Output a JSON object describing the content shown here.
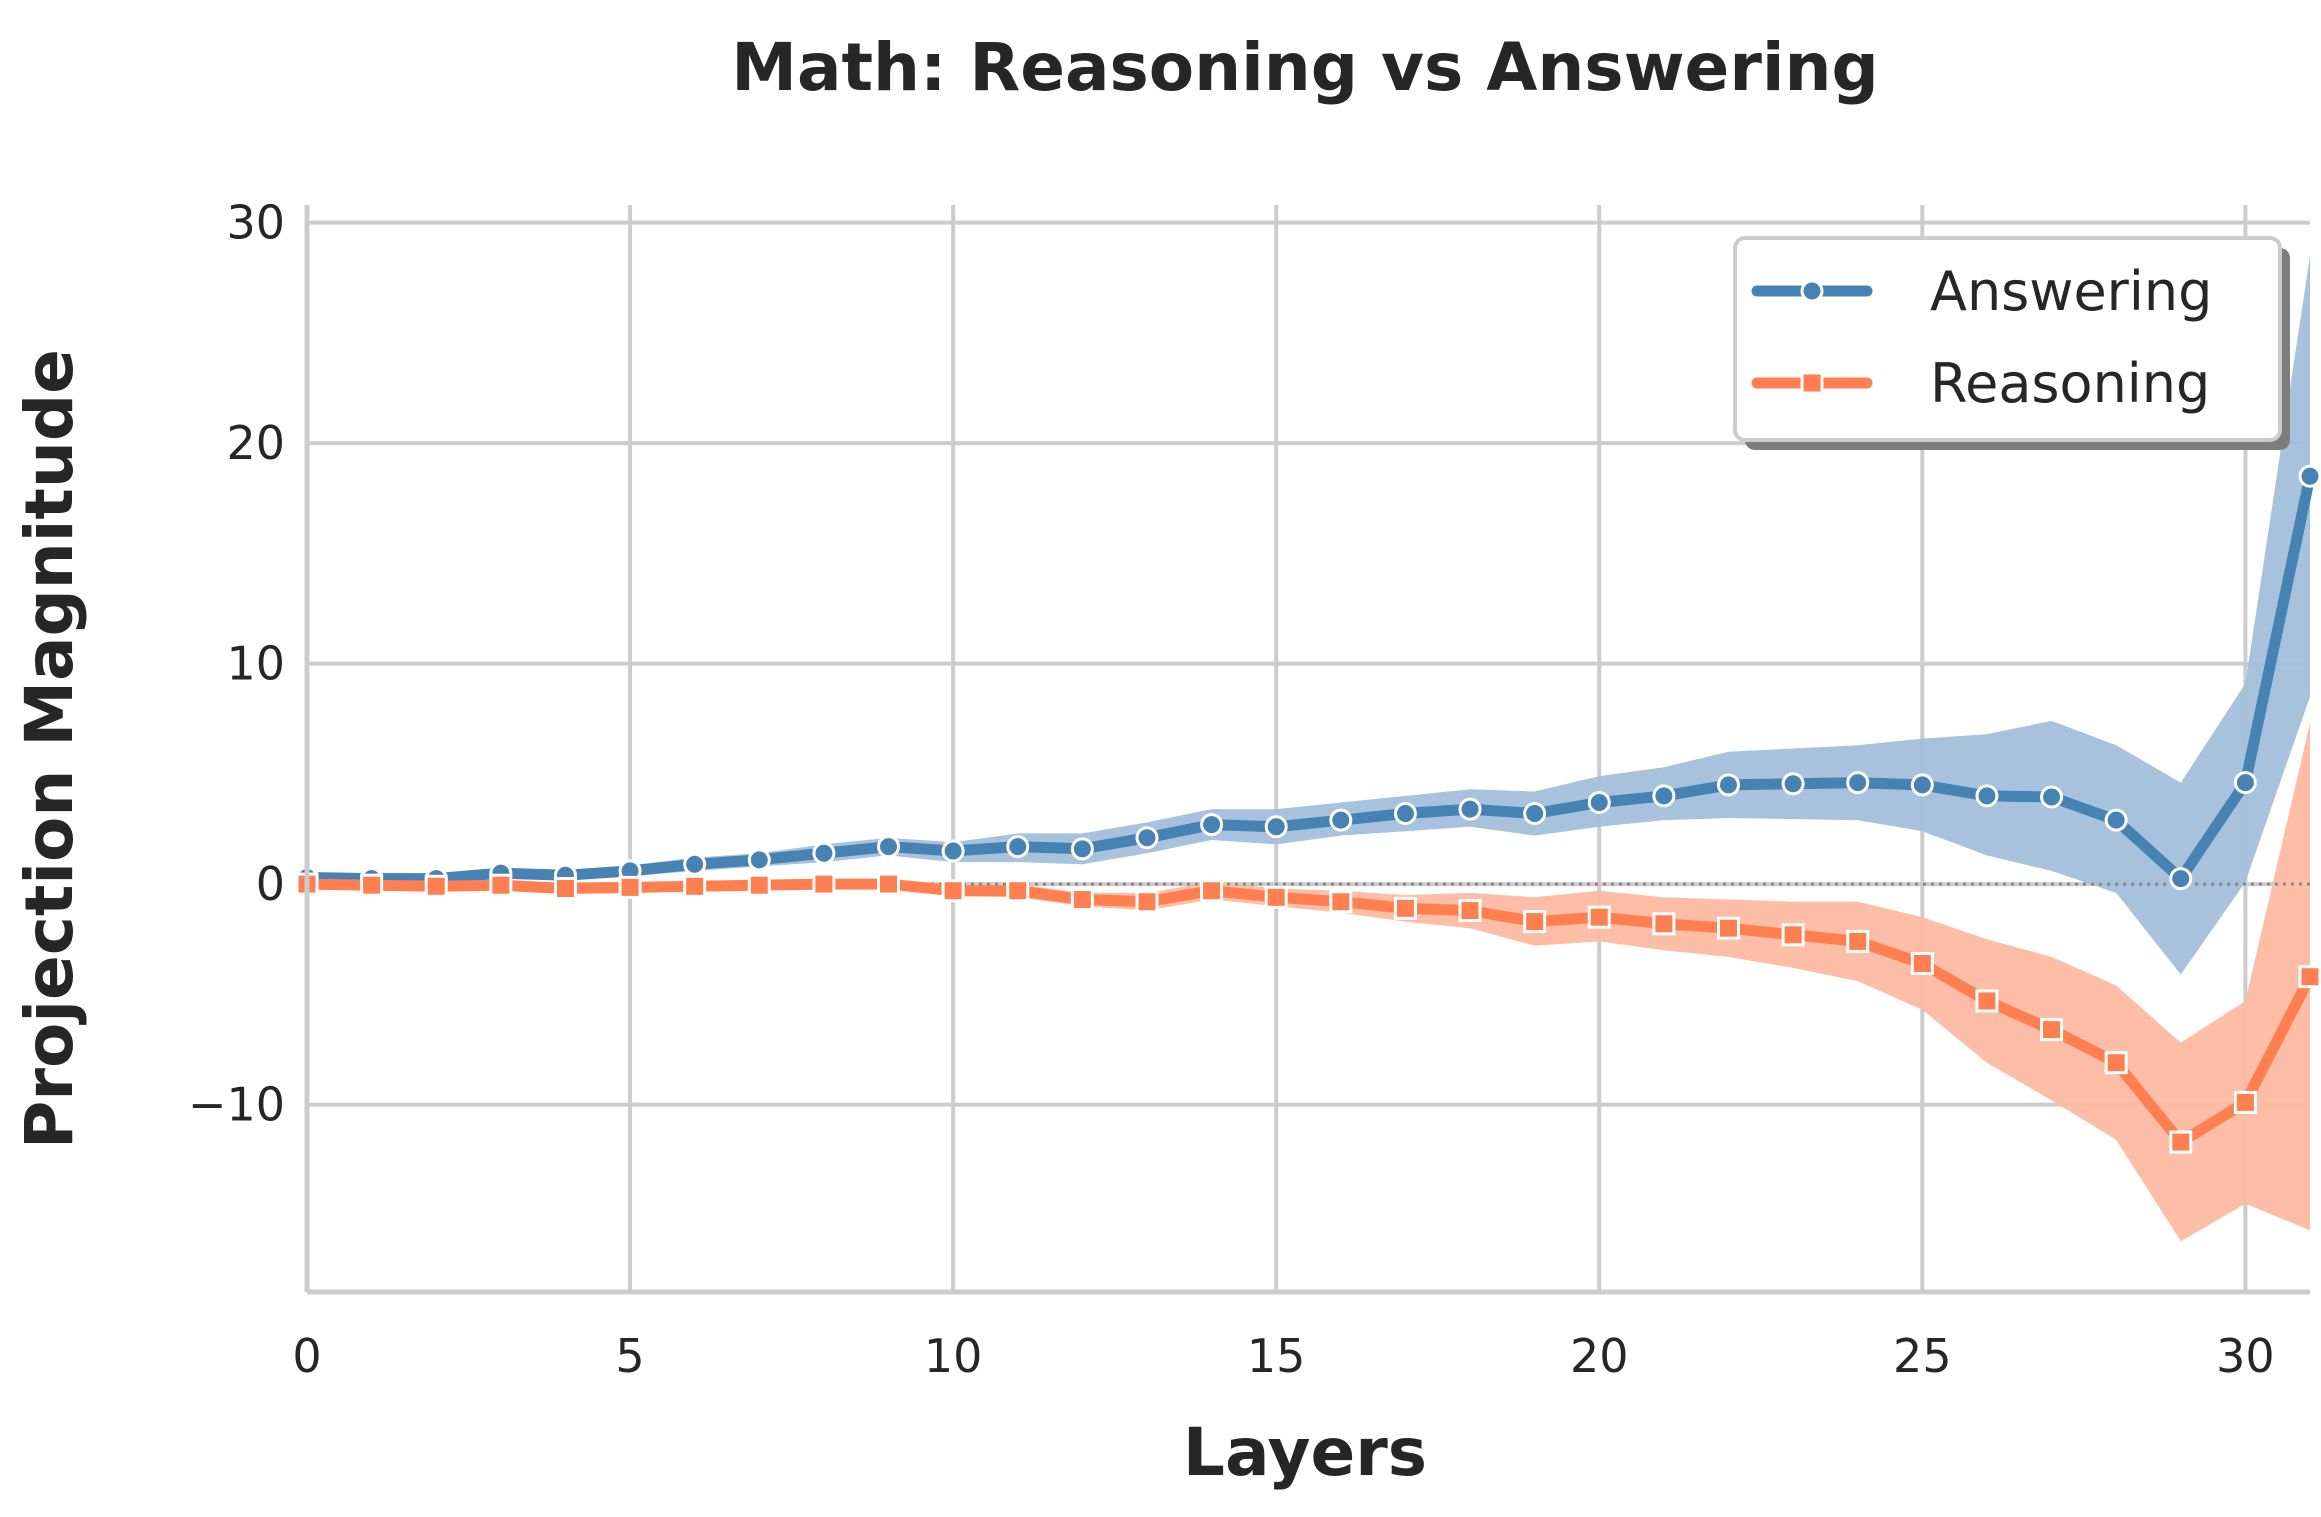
{
  "chart_data": {
    "type": "line",
    "title": "Math: Reasoning vs Answering",
    "xlabel": "Layers",
    "ylabel": "Projection Magnitude",
    "xlim": [
      0,
      31
    ],
    "ylim": [
      -18.5,
      30.8
    ],
    "xticks": [
      0,
      5,
      10,
      15,
      20,
      25,
      30
    ],
    "xtick_labels": [
      "0",
      "5",
      "10",
      "15",
      "20",
      "25",
      "30"
    ],
    "yticks": [
      -10,
      0,
      10,
      20,
      30
    ],
    "ytick_labels": [
      "−10",
      "0",
      "10",
      "20",
      "30"
    ],
    "grid": true,
    "reference_line": 0,
    "legend_position": "top-right",
    "x": [
      0,
      1,
      2,
      3,
      4,
      5,
      6,
      7,
      8,
      9,
      10,
      11,
      12,
      13,
      14,
      15,
      16,
      17,
      18,
      19,
      20,
      21,
      22,
      23,
      24,
      25,
      26,
      27,
      28,
      29,
      30,
      31
    ],
    "series": [
      {
        "name": "Answering",
        "color": "#4682b4",
        "band_color": "#a3bfdb",
        "marker": "circle",
        "values": [
          0.3,
          0.25,
          0.25,
          0.5,
          0.4,
          0.6,
          0.9,
          1.1,
          1.4,
          1.7,
          1.5,
          1.7,
          1.6,
          2.1,
          2.7,
          2.6,
          2.9,
          3.2,
          3.4,
          3.2,
          3.7,
          4.0,
          4.5,
          4.55,
          4.6,
          4.5,
          4.0,
          3.95,
          2.9,
          0.25,
          4.6,
          18.5
        ],
        "lower": [
          0.2,
          0.15,
          0.1,
          0.3,
          0.2,
          0.35,
          0.6,
          0.8,
          1.0,
          1.3,
          1.0,
          1.0,
          0.9,
          1.4,
          2.0,
          1.8,
          2.2,
          2.4,
          2.6,
          2.2,
          2.6,
          2.9,
          3.0,
          2.95,
          2.9,
          2.4,
          1.3,
          0.6,
          -0.4,
          -4.1,
          0.1,
          8.5
        ],
        "upper": [
          0.4,
          0.35,
          0.4,
          0.7,
          0.6,
          0.85,
          1.2,
          1.4,
          1.8,
          2.1,
          1.9,
          2.3,
          2.3,
          2.8,
          3.4,
          3.4,
          3.7,
          4.0,
          4.3,
          4.2,
          4.9,
          5.3,
          6.0,
          6.15,
          6.3,
          6.6,
          6.8,
          7.4,
          6.3,
          4.6,
          9.1,
          28.5
        ]
      },
      {
        "name": "Reasoning",
        "color": "#ff7f50",
        "band_color": "#fdb9a1",
        "marker": "square",
        "values": [
          0.0,
          -0.05,
          -0.1,
          -0.05,
          -0.2,
          -0.15,
          -0.1,
          -0.05,
          0.0,
          0.0,
          -0.3,
          -0.3,
          -0.7,
          -0.8,
          -0.3,
          -0.6,
          -0.8,
          -1.1,
          -1.2,
          -1.7,
          -1.5,
          -1.8,
          -2.0,
          -2.3,
          -2.6,
          -3.6,
          -5.3,
          -6.6,
          -8.1,
          -11.7,
          -9.9,
          -4.2
        ],
        "lower": [
          -0.15,
          -0.2,
          -0.3,
          -0.25,
          -0.4,
          -0.35,
          -0.3,
          -0.25,
          -0.2,
          -0.2,
          -0.55,
          -0.6,
          -1.0,
          -1.2,
          -0.7,
          -1.0,
          -1.3,
          -1.7,
          -2.0,
          -2.8,
          -2.6,
          -3.0,
          -3.3,
          -3.8,
          -4.4,
          -5.7,
          -8.1,
          -9.8,
          -11.6,
          -16.2,
          -14.5,
          -15.7
        ],
        "upper": [
          0.15,
          0.1,
          0.1,
          0.15,
          0.0,
          0.05,
          0.1,
          0.15,
          0.2,
          0.2,
          -0.05,
          0.0,
          -0.4,
          -0.4,
          0.1,
          -0.2,
          -0.3,
          -0.5,
          -0.4,
          -0.6,
          -0.3,
          -0.6,
          -0.7,
          -0.8,
          -0.8,
          -1.5,
          -2.5,
          -3.3,
          -4.6,
          -7.2,
          -5.3,
          7.3
        ]
      }
    ]
  }
}
